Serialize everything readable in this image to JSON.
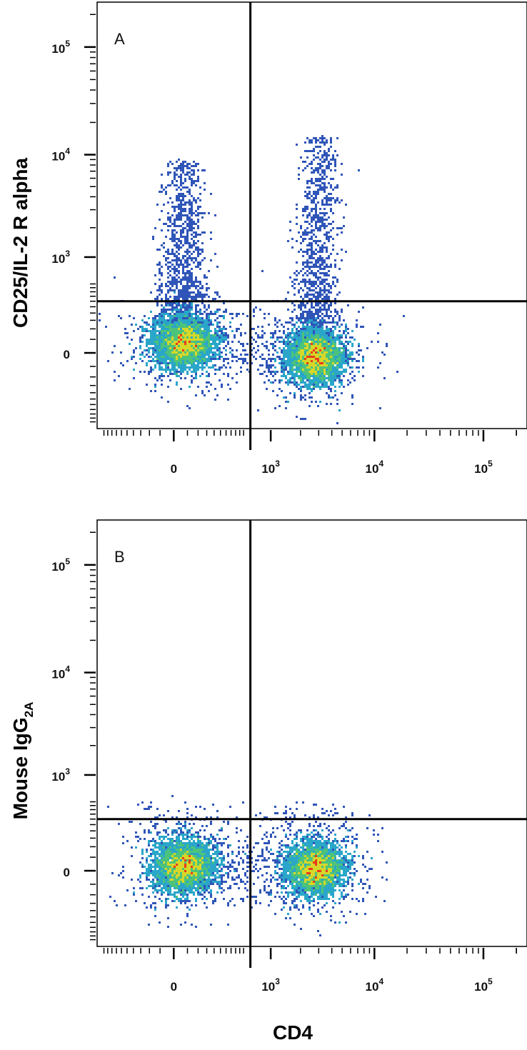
{
  "chart_data": [
    {
      "type": "scatter",
      "panel_label": "A",
      "ylabel": "CD25/IL-2 R alpha",
      "x_scale": "biexponential",
      "y_scale": "biexponential",
      "x_ticks": [
        {
          "base": "0",
          "exp": ""
        },
        {
          "base": "10",
          "exp": "3"
        },
        {
          "base": "10",
          "exp": "4"
        },
        {
          "base": "10",
          "exp": "5"
        }
      ],
      "y_ticks": [
        {
          "base": "0",
          "exp": ""
        },
        {
          "base": "10",
          "exp": "3"
        },
        {
          "base": "10",
          "exp": "4"
        },
        {
          "base": "10",
          "exp": "5"
        }
      ],
      "quadrant_gate": {
        "x": 600,
        "y": 300
      },
      "populations": [
        {
          "name": "CD4-negative",
          "x_center": 30,
          "y_center": 40,
          "upper_tail": true
        },
        {
          "name": "CD4-positive",
          "x_center": 2700,
          "y_center": -10,
          "upper_tail": true
        }
      ]
    },
    {
      "type": "scatter",
      "panel_label": "B",
      "ylabel": "Mouse IgG",
      "ylabel_sub": "2A",
      "x_scale": "biexponential",
      "y_scale": "biexponential",
      "x_ticks": [
        {
          "base": "0",
          "exp": ""
        },
        {
          "base": "10",
          "exp": "3"
        },
        {
          "base": "10",
          "exp": "4"
        },
        {
          "base": "10",
          "exp": "5"
        }
      ],
      "y_ticks": [
        {
          "base": "0",
          "exp": ""
        },
        {
          "base": "10",
          "exp": "3"
        },
        {
          "base": "10",
          "exp": "4"
        },
        {
          "base": "10",
          "exp": "5"
        }
      ],
      "quadrant_gate": {
        "x": 600,
        "y": 300
      },
      "populations": [
        {
          "name": "CD4-negative",
          "x_center": 30,
          "y_center": 20,
          "upper_tail": false
        },
        {
          "name": "CD4-positive",
          "x_center": 2700,
          "y_center": 10,
          "upper_tail": false
        }
      ]
    }
  ],
  "shared_xlabel": "CD4",
  "colors": {
    "low": "#2f55b8",
    "mid_low": "#2aa6c9",
    "mid": "#4cc37a",
    "mid_high": "#d7d72a",
    "high": "#e83a1c",
    "gate": "#000000"
  }
}
